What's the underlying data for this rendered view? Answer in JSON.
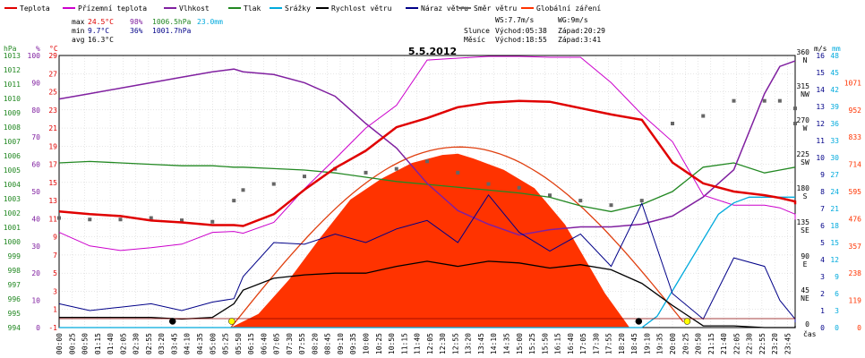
{
  "chart_data": {
    "type": "line",
    "title": "5.5.2012",
    "legend": [
      {
        "label": "Teplota",
        "color": "#e00000"
      },
      {
        "label": "Přízemní teplota",
        "color": "#cc00cc"
      },
      {
        "label": "Vlhkost",
        "color": "#8020a0"
      },
      {
        "label": "Tlak",
        "color": "#228822"
      },
      {
        "label": "Srážky",
        "color": "#00aadd"
      },
      {
        "label": "Rychlost větru",
        "color": "#000000"
      },
      {
        "label": "Náraz větru",
        "color": "#000088"
      },
      {
        "label": "Směr větru",
        "color": "#666666"
      },
      {
        "label": "Globální záření",
        "color": "#ff3300"
      }
    ],
    "stats": {
      "max": {
        "label": "max",
        "temp": "24.5°C",
        "hum": "98%",
        "press": "1006.5hPa",
        "rain": "23.0mm"
      },
      "min": {
        "label": "min",
        "temp": "9.7°C",
        "hum": "36%",
        "press": "1001.7hPa"
      },
      "avg": {
        "label": "avg",
        "temp": "16.3°C"
      }
    },
    "info": {
      "ws": "WS:7.7m/s",
      "wg": "WG:9m/s",
      "sun_label": "Slunce",
      "sun_rise": "Východ:05:38",
      "sun_set": "Západ:20:29",
      "moon_label": "Měsíc",
      "moon_rise": "Východ:18:55",
      "moon_set": "Západ:3:41"
    },
    "axis_units": {
      "hpa": "hPa",
      "pct": "%",
      "temp": "°C",
      "ms": "m/s",
      "mm": "mm",
      "time": "čas"
    },
    "y_pressure_ticks": [
      "1013",
      "1012",
      "1011",
      "1010",
      "1009",
      "1008",
      "1007",
      "1006",
      "1005",
      "1004",
      "1003",
      "1002",
      "1001",
      "1000",
      "999",
      "998",
      "997",
      "996",
      "995",
      "994"
    ],
    "y_humidity_ticks": [
      "100",
      "90",
      "80",
      "70",
      "60",
      "50",
      "40",
      "30",
      "20",
      "10",
      "0"
    ],
    "y_temp_ticks": [
      "29",
      "27",
      "25",
      "23",
      "21",
      "19",
      "17",
      "15",
      "13",
      "11",
      "9",
      "7",
      "5",
      "3",
      "1",
      "-1"
    ],
    "dir_ticks": [
      {
        "deg": "360",
        "dir": "N"
      },
      {
        "deg": "315",
        "dir": "NW"
      },
      {
        "deg": "270",
        "dir": "W"
      },
      {
        "deg": "225",
        "dir": "SW"
      },
      {
        "deg": "180",
        "dir": "S"
      },
      {
        "deg": "135",
        "dir": "SE"
      },
      {
        "deg": "90",
        "dir": "E"
      },
      {
        "deg": "45",
        "dir": "NE"
      },
      {
        "deg": "0",
        "dir": ""
      }
    ],
    "wind_ticks": [
      "16",
      "15",
      "14",
      "13",
      "12",
      "11",
      "10",
      "9",
      "8",
      "7",
      "6",
      "5",
      "4",
      "3",
      "2",
      "1",
      "0"
    ],
    "rain_ticks": [
      "48",
      "45",
      "42",
      "39",
      "36",
      "33",
      "30",
      "27",
      "24",
      "21",
      "18",
      "15",
      "12",
      "9",
      "6",
      "3",
      "0"
    ],
    "rad_ticks": [
      "1071",
      "952",
      "833",
      "714",
      "595",
      "476",
      "357",
      "238",
      "119",
      "0"
    ],
    "x_labels": [
      "00:00",
      "00:25",
      "00:50",
      "01:15",
      "01:40",
      "02:05",
      "02:30",
      "02:55",
      "03:20",
      "03:45",
      "04:10",
      "04:35",
      "05:00",
      "05:25",
      "05:50",
      "06:15",
      "06:40",
      "07:05",
      "07:30",
      "07:55",
      "08:20",
      "08:45",
      "09:10",
      "09:35",
      "10:00",
      "10:25",
      "10:50",
      "11:15",
      "11:40",
      "12:05",
      "12:30",
      "12:55",
      "13:20",
      "13:45",
      "14:10",
      "14:35",
      "15:00",
      "15:25",
      "15:50",
      "16:15",
      "16:40",
      "17:05",
      "17:30",
      "17:55",
      "18:20",
      "18:45",
      "19:10",
      "19:35",
      "20:00",
      "20:25",
      "20:50",
      "21:15",
      "21:40",
      "22:05",
      "22:30",
      "22:55",
      "23:20",
      "23:45"
    ],
    "hours": [
      0,
      1,
      2,
      3,
      4,
      5,
      6,
      7,
      8,
      9,
      10,
      11,
      12,
      13,
      14,
      15,
      16,
      17,
      18,
      19,
      20,
      21,
      22,
      23,
      24
    ],
    "temperature": [
      11.8,
      11.5,
      11.3,
      10.8,
      10.6,
      10.3,
      10.3,
      10.2,
      11.5,
      14.2,
      16.6,
      18.5,
      21.1,
      22.1,
      23.3,
      23.8,
      24.0,
      23.9,
      23.2,
      22.5,
      21.9,
      17.2,
      14.9,
      14.0,
      13.6,
      13.3,
      12.9,
      12.6
    ],
    "temperature_hours": [
      0,
      1,
      2,
      3,
      4,
      5,
      5.7,
      6,
      7,
      8,
      9,
      10,
      11,
      12,
      13,
      14,
      15,
      16,
      17,
      18,
      19,
      20,
      21,
      22,
      23,
      23.5,
      24,
      24
    ],
    "ground_temperature": [
      9.5,
      8.0,
      7.5,
      7.8,
      8.2,
      9.5,
      9.6,
      9.4,
      10.6,
      14.3,
      17.6,
      21.0,
      23.5,
      28.5,
      28.7,
      28.9,
      28.9,
      28.8,
      28.8,
      26.0,
      22.5,
      19.5,
      13.6,
      12.5,
      12.5,
      12.2,
      11.5,
      10.9
    ],
    "humidity": [
      84,
      86,
      88,
      90,
      92,
      94,
      95,
      94,
      93,
      90,
      85,
      75,
      66,
      53,
      43,
      38,
      34,
      36,
      37,
      37,
      38,
      41,
      48,
      58,
      86,
      96,
      98,
      98
    ],
    "pressure": [
      1005.5,
      1005.6,
      1005.5,
      1005.4,
      1005.3,
      1005.3,
      1005.2,
      1005.2,
      1005.1,
      1005.0,
      1004.8,
      1004.5,
      1004.2,
      1004.0,
      1003.8,
      1003.6,
      1003.4,
      1003.1,
      1002.5,
      1002.1,
      1002.6,
      1003.5,
      1005.2,
      1005.5,
      1004.8,
      1005.0,
      1005.2,
      1005.2
    ],
    "rain": [
      0,
      0,
      0,
      0,
      0,
      0,
      0,
      0,
      0,
      0,
      0,
      0,
      0,
      0,
      0,
      0,
      0,
      0,
      0,
      0,
      0,
      2,
      11,
      20,
      22,
      23.0,
      23.0,
      23.0
    ],
    "rain_hours": [
      0,
      1,
      2,
      3,
      4,
      5,
      6,
      7,
      8,
      9,
      10,
      11,
      12,
      13,
      14,
      15,
      16,
      17,
      18,
      18.9,
      19,
      19.5,
      20.5,
      21.5,
      22,
      22.5,
      23,
      24
    ],
    "wind_speed": [
      0.6,
      0.6,
      0.6,
      0.6,
      0.5,
      0.6,
      1.4,
      2.2,
      2.9,
      3.1,
      3.2,
      3.2,
      3.6,
      3.9,
      3.6,
      3.9,
      3.8,
      3.5,
      3.7,
      3.4,
      2.6,
      1.3,
      0.1,
      0.1,
      0.0,
      0.0,
      0.0,
      0.1
    ],
    "wind_gust": [
      1.4,
      1.0,
      1.2,
      1.4,
      1.0,
      1.5,
      1.7,
      3.0,
      5.0,
      4.9,
      5.5,
      5.0,
      5.8,
      6.3,
      5.0,
      7.8,
      5.6,
      4.5,
      5.5,
      3.6,
      7.3,
      2.0,
      0.5,
      4.1,
      3.6,
      1.6,
      0.5,
      0.3
    ],
    "wind_dir_deg": [
      145,
      143,
      143,
      145,
      142,
      140,
      168,
      182,
      190,
      200,
      210,
      205,
      210,
      220,
      205,
      190,
      185,
      175,
      168,
      162,
      168,
      270,
      280,
      300,
      300,
      300,
      290,
      270
    ],
    "radiation": [
      0,
      0,
      0,
      0,
      0,
      0,
      0,
      60,
      210,
      390,
      560,
      650,
      720,
      755,
      760,
      740,
      690,
      610,
      450,
      150,
      0,
      0,
      0,
      0,
      0,
      0,
      0,
      0
    ],
    "radiation_hours": [
      0,
      1,
      2,
      3,
      4,
      5,
      5.6,
      6.5,
      7.5,
      8.5,
      9.5,
      10.5,
      11.5,
      12.5,
      13,
      13.5,
      14.5,
      15.5,
      16.5,
      17.8,
      18.6,
      19,
      20,
      21,
      22,
      23,
      23.5,
      24
    ],
    "markers": [
      {
        "type": "black-dot",
        "hour": 3.7
      },
      {
        "type": "yellow-dot",
        "hour": 5.63
      },
      {
        "type": "black-dot",
        "hour": 18.9
      },
      {
        "type": "yellow-dot",
        "hour": 20.48
      }
    ]
  }
}
